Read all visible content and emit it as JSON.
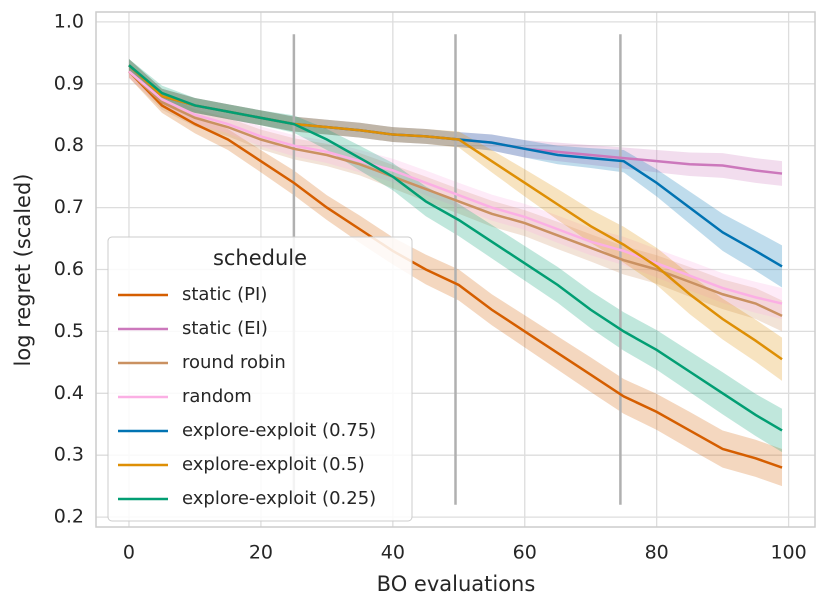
{
  "chart_data": {
    "type": "line",
    "xlabel": "BO evaluations",
    "ylabel": "log regret (scaled)",
    "legend_title": "schedule",
    "legend": "lower left",
    "grid": true,
    "xlim": [
      -5,
      104
    ],
    "ylim": [
      0.184,
      1.016
    ],
    "xticks": [
      0,
      20,
      40,
      60,
      80,
      100
    ],
    "yticks": [
      0.2,
      0.3,
      0.4,
      0.5,
      0.6,
      0.7,
      0.8,
      0.9,
      {
        "value": 1,
        "label": "1.0"
      }
    ],
    "vlines": {
      "x": [
        25,
        49.5,
        74.5
      ],
      "ymin": 0.22,
      "ymax": 0.98,
      "color": "#b0b0b0"
    },
    "x": [
      0,
      5,
      10,
      15,
      20,
      25,
      30,
      35,
      40,
      45,
      50,
      55,
      60,
      65,
      70,
      75,
      80,
      85,
      90,
      95,
      99
    ],
    "series": [
      {
        "name": "static (PI)",
        "color": "#d55e00",
        "values": [
          0.92,
          0.865,
          0.835,
          0.81,
          0.775,
          0.74,
          0.7,
          0.665,
          0.63,
          0.6,
          0.575,
          0.535,
          0.5,
          0.465,
          0.43,
          0.395,
          0.37,
          0.34,
          0.31,
          0.295,
          0.28
        ],
        "error": [
          0.01,
          0.012,
          0.015,
          0.017,
          0.018,
          0.02,
          0.02,
          0.022,
          0.022,
          0.024,
          0.025,
          0.025,
          0.026,
          0.027,
          0.028,
          0.028,
          0.029,
          0.03,
          0.03,
          0.03,
          0.03
        ]
      },
      {
        "name": "static (EI)",
        "color": "#cc78bc",
        "values": [
          0.93,
          0.88,
          0.865,
          0.855,
          0.845,
          0.835,
          0.83,
          0.825,
          0.818,
          0.815,
          0.81,
          0.805,
          0.795,
          0.79,
          0.785,
          0.78,
          0.775,
          0.77,
          0.768,
          0.76,
          0.755
        ],
        "error": [
          0.01,
          0.012,
          0.012,
          0.012,
          0.012,
          0.012,
          0.012,
          0.012,
          0.012,
          0.012,
          0.012,
          0.013,
          0.014,
          0.015,
          0.016,
          0.017,
          0.018,
          0.019,
          0.02,
          0.02,
          0.02
        ]
      },
      {
        "name": "round robin",
        "color": "#ca9161",
        "values": [
          0.92,
          0.87,
          0.845,
          0.83,
          0.81,
          0.795,
          0.785,
          0.77,
          0.75,
          0.73,
          0.71,
          0.69,
          0.675,
          0.655,
          0.635,
          0.615,
          0.6,
          0.58,
          0.56,
          0.545,
          0.525
        ],
        "error": [
          0.01,
          0.012,
          0.014,
          0.015,
          0.016,
          0.017,
          0.018,
          0.018,
          0.019,
          0.02,
          0.02,
          0.021,
          0.021,
          0.022,
          0.022,
          0.023,
          0.023,
          0.024,
          0.024,
          0.025,
          0.025
        ]
      },
      {
        "name": "random",
        "color": "#fbafe4",
        "values": [
          0.92,
          0.875,
          0.85,
          0.835,
          0.815,
          0.8,
          0.79,
          0.775,
          0.76,
          0.74,
          0.72,
          0.7,
          0.685,
          0.665,
          0.645,
          0.63,
          0.61,
          0.59,
          0.57,
          0.555,
          0.545
        ],
        "error": [
          0.01,
          0.012,
          0.014,
          0.015,
          0.016,
          0.017,
          0.018,
          0.018,
          0.019,
          0.02,
          0.02,
          0.021,
          0.021,
          0.022,
          0.022,
          0.023,
          0.023,
          0.024,
          0.024,
          0.025,
          0.025
        ]
      },
      {
        "name": "explore-exploit (0.75)",
        "color": "#0173b2",
        "values": [
          0.93,
          0.88,
          0.865,
          0.855,
          0.845,
          0.835,
          0.83,
          0.825,
          0.818,
          0.815,
          0.81,
          0.805,
          0.795,
          0.785,
          0.78,
          0.775,
          0.74,
          0.7,
          0.66,
          0.63,
          0.605
        ],
        "error": [
          0.01,
          0.012,
          0.012,
          0.012,
          0.012,
          0.012,
          0.012,
          0.012,
          0.012,
          0.012,
          0.012,
          0.013,
          0.014,
          0.015,
          0.016,
          0.018,
          0.022,
          0.026,
          0.03,
          0.032,
          0.034
        ]
      },
      {
        "name": "explore-exploit (0.5)",
        "color": "#de8f05",
        "values": [
          0.93,
          0.88,
          0.865,
          0.855,
          0.845,
          0.835,
          0.83,
          0.825,
          0.818,
          0.815,
          0.81,
          0.775,
          0.74,
          0.705,
          0.67,
          0.64,
          0.605,
          0.56,
          0.52,
          0.485,
          0.455
        ],
        "error": [
          0.01,
          0.012,
          0.012,
          0.012,
          0.012,
          0.012,
          0.012,
          0.012,
          0.012,
          0.012,
          0.013,
          0.018,
          0.022,
          0.025,
          0.027,
          0.029,
          0.03,
          0.032,
          0.033,
          0.034,
          0.035
        ]
      },
      {
        "name": "explore-exploit (0.25)",
        "color": "#029e73",
        "values": [
          0.93,
          0.885,
          0.865,
          0.855,
          0.845,
          0.835,
          0.81,
          0.78,
          0.75,
          0.71,
          0.68,
          0.645,
          0.61,
          0.575,
          0.535,
          0.5,
          0.47,
          0.435,
          0.4,
          0.365,
          0.34
        ],
        "error": [
          0.01,
          0.012,
          0.012,
          0.012,
          0.012,
          0.014,
          0.017,
          0.02,
          0.022,
          0.024,
          0.026,
          0.027,
          0.028,
          0.029,
          0.03,
          0.031,
          0.032,
          0.033,
          0.034,
          0.034,
          0.035
        ]
      }
    ]
  }
}
